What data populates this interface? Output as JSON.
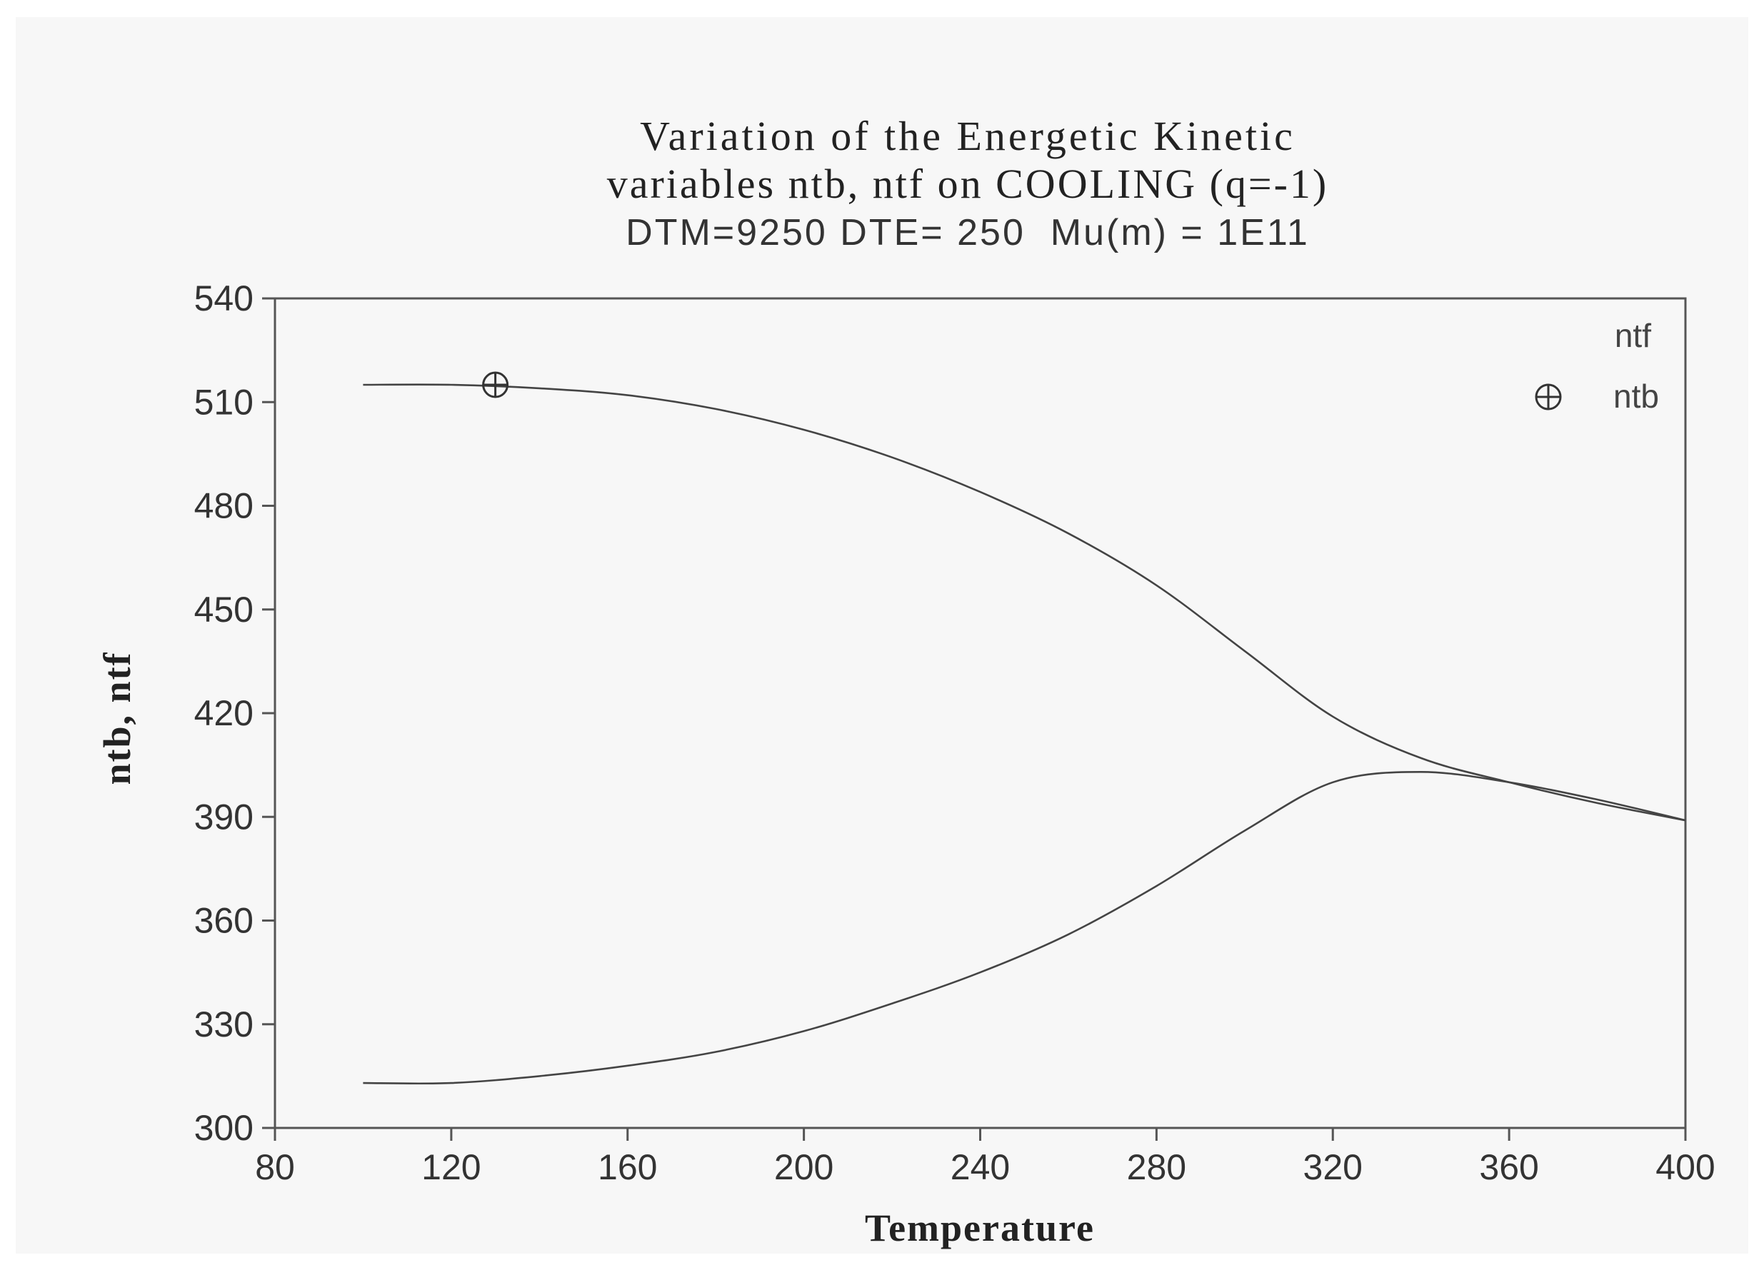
{
  "chart_data": {
    "type": "line",
    "title": "Variation of the Energetic Kinetic",
    "title_line2": "variables ntb, ntf on COOLING (q=-1)",
    "subtitle": "DTM=9250 DTE= 250  Mu(m) = 1E11",
    "xlabel": "Temperature",
    "ylabel": "ntb, ntf",
    "xlim": [
      80,
      400
    ],
    "ylim": [
      300,
      540
    ],
    "xticks": [
      "80",
      "120",
      "160",
      "200",
      "240",
      "280",
      "320",
      "360",
      "400"
    ],
    "yticks": [
      "540",
      "510",
      "480",
      "450",
      "420",
      "390",
      "360",
      "330",
      "300"
    ],
    "grid": false,
    "legend_position": "top-right",
    "colors": {
      "line": "#444444",
      "axis": "#555555",
      "background": "#f7f7f7"
    },
    "series": [
      {
        "name": "ntf",
        "marker": "none",
        "x": [
          100,
          120,
          140,
          160,
          180,
          200,
          220,
          240,
          260,
          280,
          300,
          320,
          340,
          360,
          380,
          400
        ],
        "y": [
          515,
          515,
          514,
          512,
          508,
          502,
          494,
          484,
          472,
          457,
          438,
          419,
          407,
          400,
          394,
          389
        ]
      },
      {
        "name": "ntb",
        "marker": "circle-plus",
        "x": [
          100,
          120,
          140,
          160,
          180,
          200,
          220,
          240,
          260,
          280,
          300,
          320,
          340,
          360,
          380,
          400
        ],
        "y": [
          313,
          313,
          315,
          318,
          322,
          328,
          336,
          345,
          356,
          370,
          386,
          400,
          403,
          400,
          395,
          389
        ],
        "marker_points": [
          [
            130,
            515
          ]
        ]
      }
    ]
  }
}
